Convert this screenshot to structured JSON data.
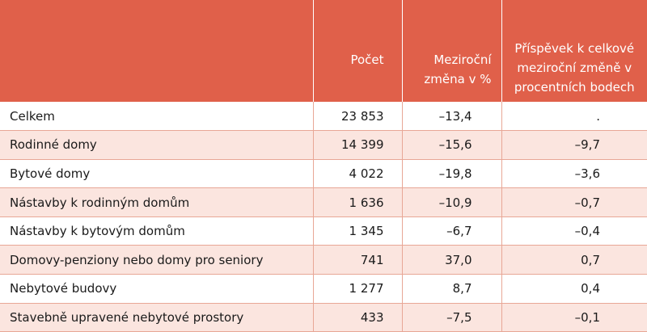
{
  "header": {
    "col_label": "",
    "col_count": "Počet",
    "col_yoy": "Meziroční změna v %",
    "col_contrib": "Příspěvek k celkové meziroční změně v procentních bodech"
  },
  "rows": [
    {
      "name": "Celkem",
      "count": "23 853",
      "yoy": "–13,4",
      "contrib": "."
    },
    {
      "name": "Rodinné domy",
      "count": "14 399",
      "yoy": "–15,6",
      "contrib": "–9,7"
    },
    {
      "name": "Bytové domy",
      "count": "4 022",
      "yoy": "–19,8",
      "contrib": "–3,6"
    },
    {
      "name": "Nástavby k rodinným domům",
      "count": "1 636",
      "yoy": "–10,9",
      "contrib": "–0,7"
    },
    {
      "name": "Nástavby k bytovým domům",
      "count": "1 345",
      "yoy": "–6,7",
      "contrib": "–0,4"
    },
    {
      "name": "Domovy-penziony nebo domy pro seniory",
      "count": "741",
      "yoy": "37,0",
      "contrib": "0,7"
    },
    {
      "name": "Nebytové budovy",
      "count": "1 277",
      "yoy": "8,7",
      "contrib": "0,4"
    },
    {
      "name": "Stavebně upravené nebytové prostory",
      "count": "433",
      "yoy": "–7,5",
      "contrib": "–0,1"
    }
  ],
  "colors": {
    "header_bg": "#e0604a",
    "stripe_bg": "#fbe5df",
    "rule": "#e8a796"
  }
}
